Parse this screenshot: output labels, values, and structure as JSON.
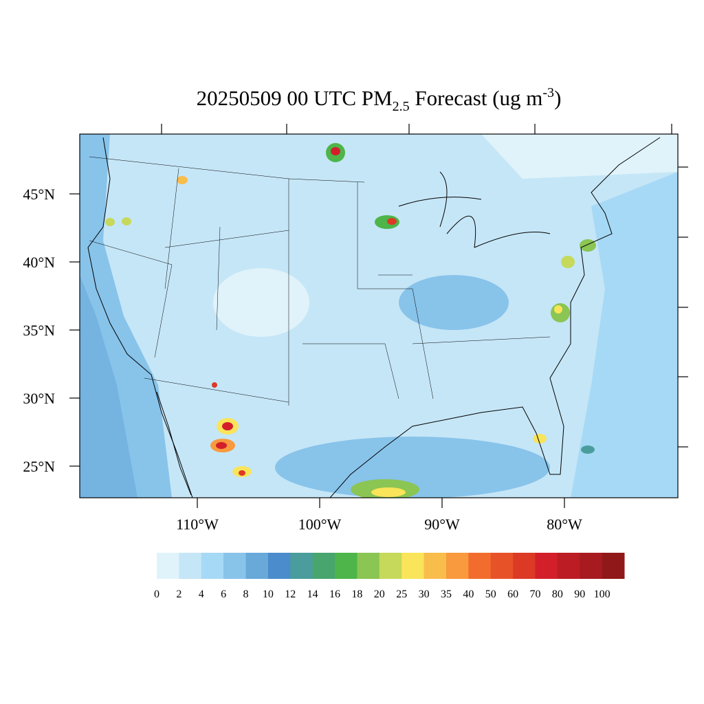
{
  "map": {
    "title": {
      "main": "20250509 00 UTC PM",
      "sub": "2.5",
      "rest": " Forecast (ug m",
      "sup": "-3",
      "end": ")"
    },
    "lat_ticks": [
      {
        "value": 45,
        "label": "45°N"
      },
      {
        "value": 40,
        "label": "40°N"
      },
      {
        "value": 35,
        "label": "35°N"
      },
      {
        "value": 30,
        "label": "30°N"
      },
      {
        "value": 25,
        "label": "25°N"
      }
    ],
    "lon_ticks": [
      {
        "value": -110,
        "label": "110°W"
      },
      {
        "value": -100,
        "label": "100°W"
      },
      {
        "value": -90,
        "label": "90°W"
      },
      {
        "value": -80,
        "label": "80°W"
      }
    ],
    "colorbar": {
      "levels": [
        0,
        2,
        4,
        6,
        8,
        10,
        12,
        14,
        16,
        18,
        20,
        25,
        30,
        35,
        40,
        50,
        60,
        70,
        80,
        90,
        100
      ],
      "colors": [
        "#e0f3fa",
        "#c5e6f7",
        "#a6d9f5",
        "#88c3ea",
        "#69a9da",
        "#4a8ccc",
        "#4a9d9c",
        "#48a56e",
        "#4db54a",
        "#8bc553",
        "#c6d95a",
        "#f9e45a",
        "#f9bd4c",
        "#f89a3d",
        "#f26d2d",
        "#e85228",
        "#dc3a25",
        "#d21f2a",
        "#bc1c23",
        "#a71a20",
        "#901818"
      ]
    }
  }
}
